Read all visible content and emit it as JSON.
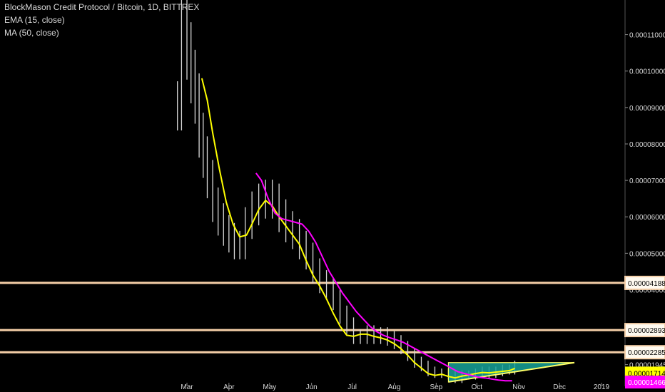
{
  "header": {
    "title": "BlockMason Credit Protocol / Bitcoin, 1D, BITTREX",
    "ema_label": "EMA (15, close)",
    "ma_label": "MA (50, close)"
  },
  "colors": {
    "background": "#000000",
    "candles": "#d9d9d9",
    "ema": "#ffff00",
    "ma": "#ff00ff",
    "levels": "#f5cfa8",
    "triangle_fill": "#16a39a",
    "triangle_stroke": "#ffff66",
    "axis_text": "#d8d8d8"
  },
  "chart_data": {
    "type": "line",
    "title": "BlockMason Credit Protocol / Bitcoin, 1D, BITTREX",
    "x_tick_labels": [
      "Mar",
      "Apr",
      "May",
      "Jun",
      "Jul",
      "Aug",
      "Sep",
      "Oct",
      "Nov",
      "Dec",
      "2019"
    ],
    "y_tick_labels": [
      "0.00011000",
      "0.00010000",
      "0.00009000",
      "0.00008000",
      "0.00007000",
      "0.00006000",
      "0.00005000",
      "0.00004000",
      "0.00001945"
    ],
    "ylim": [
      1.35e-05,
      0.0001195
    ],
    "grid": false,
    "horizontal_levels": [
      4.188e-05,
      2.893e-05,
      2.285e-05
    ],
    "level_labels": [
      "0.00004188",
      "0.00002893",
      "0.00002285"
    ],
    "current_value_labels": [
      {
        "value": 1.714e-05,
        "label": "0.00001714",
        "color": "#ffff00"
      },
      {
        "value": 1.466e-05,
        "label": "0.00001466",
        "color": "#ff00ff"
      }
    ],
    "price_series": {
      "name": "",
      "x": [
        "2018-02-22",
        "2018-02-25",
        "2018-03-01",
        "2018-03-04",
        "2018-03-07",
        "2018-03-10",
        "2018-03-13",
        "2018-03-16",
        "2018-03-20",
        "2018-03-24",
        "2018-03-28",
        "2018-04-01",
        "2018-04-05",
        "2018-04-09",
        "2018-04-13",
        "2018-04-18",
        "2018-04-23",
        "2018-04-28",
        "2018-05-03",
        "2018-05-08",
        "2018-05-13",
        "2018-05-18",
        "2018-05-23",
        "2018-05-28",
        "2018-06-02",
        "2018-06-07",
        "2018-06-12",
        "2018-06-17",
        "2018-06-22",
        "2018-06-27",
        "2018-07-02",
        "2018-07-07",
        "2018-07-12",
        "2018-07-17",
        "2018-07-22",
        "2018-07-27",
        "2018-08-01",
        "2018-08-06",
        "2018-08-11",
        "2018-08-16",
        "2018-08-21",
        "2018-08-26",
        "2018-08-31",
        "2018-09-05",
        "2018-09-10",
        "2018-09-15",
        "2018-09-20",
        "2018-09-25",
        "2018-09-30",
        "2018-10-05",
        "2018-10-10",
        "2018-10-15",
        "2018-10-20",
        "2018-10-25",
        "2018-10-29"
      ],
      "values": [
        9e-05,
        0.000112,
        0.000105,
        9.8e-05,
        9.2e-05,
        8.2e-05,
        7.6e-05,
        7e-05,
        6.3e-05,
        5.9e-05,
        5.6e-05,
        5.4e-05,
        5.2e-05,
        5.2e-05,
        5.8e-05,
        6.2e-05,
        6.4e-05,
        6.5e-05,
        6.4e-05,
        6e-05,
        5.7e-05,
        5.5e-05,
        5.2e-05,
        4.9e-05,
        4.5e-05,
        4.2e-05,
        4e-05,
        3.7e-05,
        3.3e-05,
        3e-05,
        2.7e-05,
        2.7e-05,
        2.8e-05,
        2.7e-05,
        2.75e-05,
        2.65e-05,
        2.55e-05,
        2.4e-05,
        2.2e-05,
        2e-05,
        1.9e-05,
        1.75e-05,
        1.7e-05,
        1.7e-05,
        1.65e-05,
        1.55e-05,
        1.65e-05,
        1.65e-05,
        1.7e-05,
        1.75e-05,
        1.7e-05,
        1.75e-05,
        1.8e-05,
        1.8e-05,
        1.9e-05
      ]
    },
    "series": [
      {
        "name": "EMA (15, close)",
        "x": [
          "2018-03-12",
          "2018-03-16",
          "2018-03-20",
          "2018-03-25",
          "2018-03-30",
          "2018-04-04",
          "2018-04-09",
          "2018-04-14",
          "2018-04-18",
          "2018-04-23",
          "2018-04-28",
          "2018-05-03",
          "2018-05-08",
          "2018-05-13",
          "2018-05-18",
          "2018-05-23",
          "2018-05-28",
          "2018-06-02",
          "2018-06-07",
          "2018-06-12",
          "2018-06-17",
          "2018-06-22",
          "2018-06-27",
          "2018-07-02",
          "2018-07-07",
          "2018-07-12",
          "2018-07-17",
          "2018-07-22",
          "2018-07-27",
          "2018-08-01",
          "2018-08-06",
          "2018-08-11",
          "2018-08-16",
          "2018-08-21",
          "2018-08-26",
          "2018-08-31",
          "2018-09-05",
          "2018-09-10",
          "2018-09-15",
          "2018-09-20",
          "2018-09-25",
          "2018-09-30",
          "2018-10-05",
          "2018-10-10",
          "2018-10-15",
          "2018-10-20",
          "2018-10-25",
          "2018-10-29"
        ],
        "values": [
          9.8e-05,
          9.2e-05,
          8.3e-05,
          7.3e-05,
          6.4e-05,
          5.8e-05,
          5.45e-05,
          5.5e-05,
          5.8e-05,
          6.2e-05,
          6.45e-05,
          6.3e-05,
          6e-05,
          5.75e-05,
          5.5e-05,
          5.25e-05,
          4.8e-05,
          4.4e-05,
          4.1e-05,
          3.75e-05,
          3.35e-05,
          3e-05,
          2.75e-05,
          2.72e-05,
          2.78e-05,
          2.78e-05,
          2.72e-05,
          2.68e-05,
          2.62e-05,
          2.52e-05,
          2.38e-05,
          2.2e-05,
          2e-05,
          1.85e-05,
          1.7e-05,
          1.65e-05,
          1.68e-05,
          1.62e-05,
          1.58e-05,
          1.63e-05,
          1.66e-05,
          1.7e-05,
          1.73e-05,
          1.72e-05,
          1.74e-05,
          1.76e-05,
          1.78e-05,
          1.84e-05
        ]
      },
      {
        "name": "MA (50, close)",
        "x": [
          "2018-04-21",
          "2018-04-25",
          "2018-04-30",
          "2018-05-05",
          "2018-05-10",
          "2018-05-15",
          "2018-05-20",
          "2018-05-25",
          "2018-05-30",
          "2018-06-04",
          "2018-06-09",
          "2018-06-14",
          "2018-06-19",
          "2018-06-24",
          "2018-06-29",
          "2018-07-04",
          "2018-07-09",
          "2018-07-14",
          "2018-07-19",
          "2018-07-24",
          "2018-07-29",
          "2018-08-03",
          "2018-08-08",
          "2018-08-13",
          "2018-08-18",
          "2018-08-23",
          "2018-08-28",
          "2018-09-02",
          "2018-09-07",
          "2018-09-12",
          "2018-09-17",
          "2018-09-22",
          "2018-09-27",
          "2018-10-02",
          "2018-10-07",
          "2018-10-12",
          "2018-10-17",
          "2018-10-22",
          "2018-10-27"
        ],
        "values": [
          7.2e-05,
          7e-05,
          6.5e-05,
          6.1e-05,
          5.95e-05,
          5.9e-05,
          5.85e-05,
          5.8e-05,
          5.6e-05,
          5.3e-05,
          4.9e-05,
          4.5e-05,
          4.2e-05,
          3.9e-05,
          3.65e-05,
          3.4e-05,
          3.2e-05,
          3e-05,
          2.85e-05,
          2.75e-05,
          2.68e-05,
          2.62e-05,
          2.55e-05,
          2.45e-05,
          2.35e-05,
          2.25e-05,
          2.15e-05,
          2.05e-05,
          1.95e-05,
          1.85e-05,
          1.75e-05,
          1.7e-05,
          1.65e-05,
          1.6e-05,
          1.58e-05,
          1.55e-05,
          1.52e-05,
          1.5e-05,
          1.5e-05
        ]
      }
    ],
    "triangle": {
      "points": [
        [
          "2018-09-10",
          2e-05
        ],
        [
          "2018-12-12",
          2e-05
        ],
        [
          "2018-09-10",
          1.47e-05
        ]
      ]
    }
  }
}
